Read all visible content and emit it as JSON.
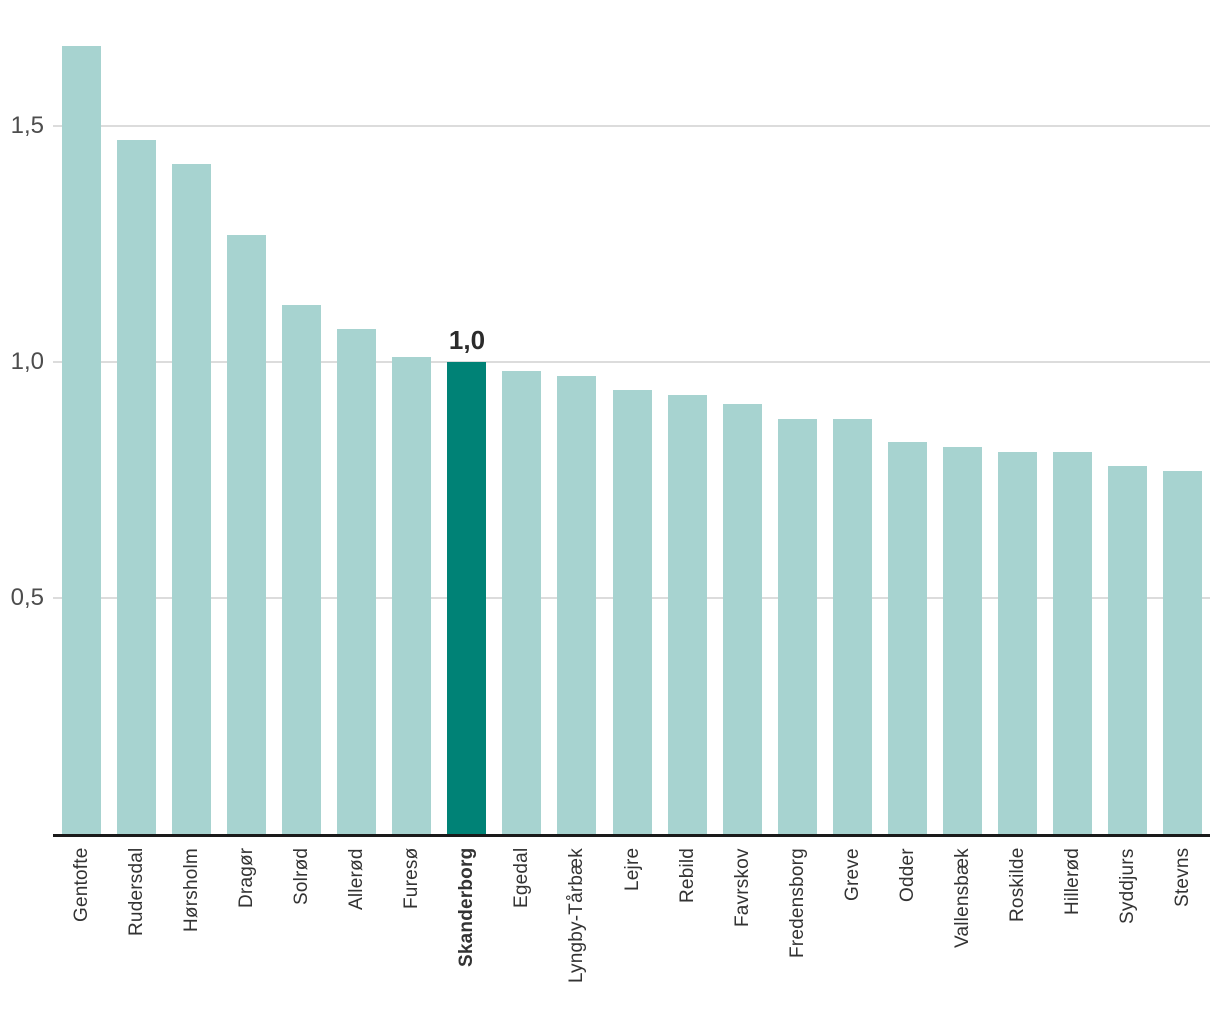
{
  "chart_data": {
    "type": "bar",
    "title": "",
    "xlabel": "",
    "ylabel": "",
    "categories": [
      "Gentofte",
      "Rudersdal",
      "Hørsholm",
      "Dragør",
      "Solrød",
      "Allerød",
      "Furesø",
      "Skanderborg",
      "Egedal",
      "Lyngby-Tårbæk",
      "Lejre",
      "Rebild",
      "Favrskov",
      "Fredensborg",
      "Greve",
      "Odder",
      "Vallensbæk",
      "Roskilde",
      "Hillerød",
      "Syddjurs",
      "Stevns"
    ],
    "values": [
      1.67,
      1.47,
      1.42,
      1.27,
      1.12,
      1.07,
      1.01,
      1.0,
      0.98,
      0.97,
      0.94,
      0.93,
      0.91,
      0.88,
      0.88,
      0.83,
      0.82,
      0.81,
      0.81,
      0.78,
      0.77
    ],
    "highlight_index": 7,
    "highlight_category": "Skanderborg",
    "highlight_value_label": "1,0",
    "yticks": [
      {
        "value": 0.5,
        "label": "0,5"
      },
      {
        "value": 1.0,
        "label": "1,0"
      },
      {
        "value": 1.5,
        "label": "1,5"
      }
    ],
    "ylim": [
      0,
      1.77
    ],
    "grid": "horizontal-behind-bars",
    "legend": "none",
    "colors": {
      "bar": "#a7d3d0",
      "highlight_bar": "#008276",
      "gridline": "#dcdcdc",
      "axis_line": "#1a1a1a",
      "ytick_text": "#4d4d4d",
      "xlabel_text": "#333333",
      "value_label_text": "#2b2b2b"
    }
  }
}
